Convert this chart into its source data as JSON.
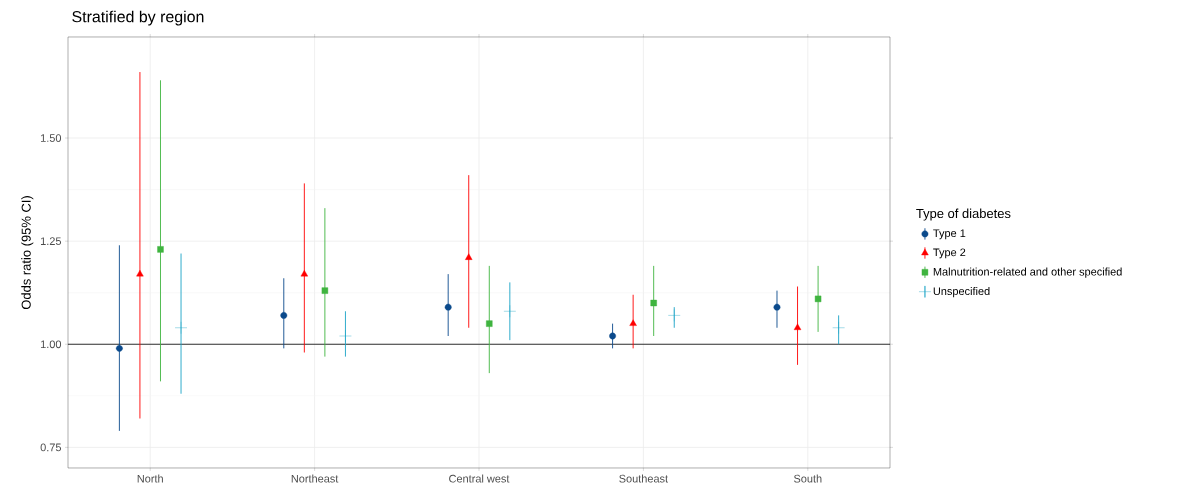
{
  "chart_data": {
    "type": "scatter",
    "title": "Stratified by region",
    "ylabel": "Odds ratio (95% CI)",
    "legend_title": "Type of diabetes",
    "legend": "right",
    "grid": true,
    "categories": [
      "North",
      "Northeast",
      "Central west",
      "Southeast",
      "South"
    ],
    "ylim": [
      0.7,
      1.745
    ],
    "yticks": [
      0.75,
      {
        "value": 1.0,
        "label": "1.00"
      },
      1.25,
      {
        "value": 1.5,
        "label": "1.50"
      }
    ],
    "ref_lines": [
      {
        "axis": "y",
        "value": 1.0,
        "color": "#000000"
      }
    ],
    "series": [
      {
        "name": "Type 1",
        "color": "#0b4a8c",
        "marker": "circle",
        "values": [
          0.99,
          1.07,
          1.09,
          1.02,
          1.09
        ],
        "errors": [
          [
            0.79,
            1.24
          ],
          [
            0.99,
            1.16
          ],
          [
            1.02,
            1.17
          ],
          [
            0.99,
            1.05
          ],
          [
            1.04,
            1.13
          ]
        ]
      },
      {
        "name": "Type 2",
        "color": "#ff0000",
        "marker": "triangle",
        "values": [
          1.17,
          1.17,
          1.21,
          1.05,
          1.04
        ],
        "errors": [
          [
            0.82,
            1.66
          ],
          [
            0.98,
            1.39
          ],
          [
            1.04,
            1.41
          ],
          [
            0.99,
            1.12
          ],
          [
            0.95,
            1.14
          ]
        ]
      },
      {
        "name": "Malnutrition-related and other specified",
        "color": "#3fb43f",
        "marker": "square",
        "values": [
          1.23,
          1.13,
          1.05,
          1.1,
          1.11
        ],
        "errors": [
          [
            0.91,
            1.64
          ],
          [
            0.97,
            1.33
          ],
          [
            0.93,
            1.19
          ],
          [
            1.02,
            1.19
          ],
          [
            1.03,
            1.19
          ]
        ]
      },
      {
        "name": "Unspecified",
        "color": "#1aa3c6",
        "marker": "cross",
        "values": [
          1.04,
          1.02,
          1.08,
          1.07,
          1.04
        ],
        "errors": [
          [
            0.88,
            1.22
          ],
          [
            0.97,
            1.08
          ],
          [
            1.01,
            1.15
          ],
          [
            1.04,
            1.09
          ],
          [
            1.0,
            1.07
          ]
        ]
      }
    ]
  }
}
